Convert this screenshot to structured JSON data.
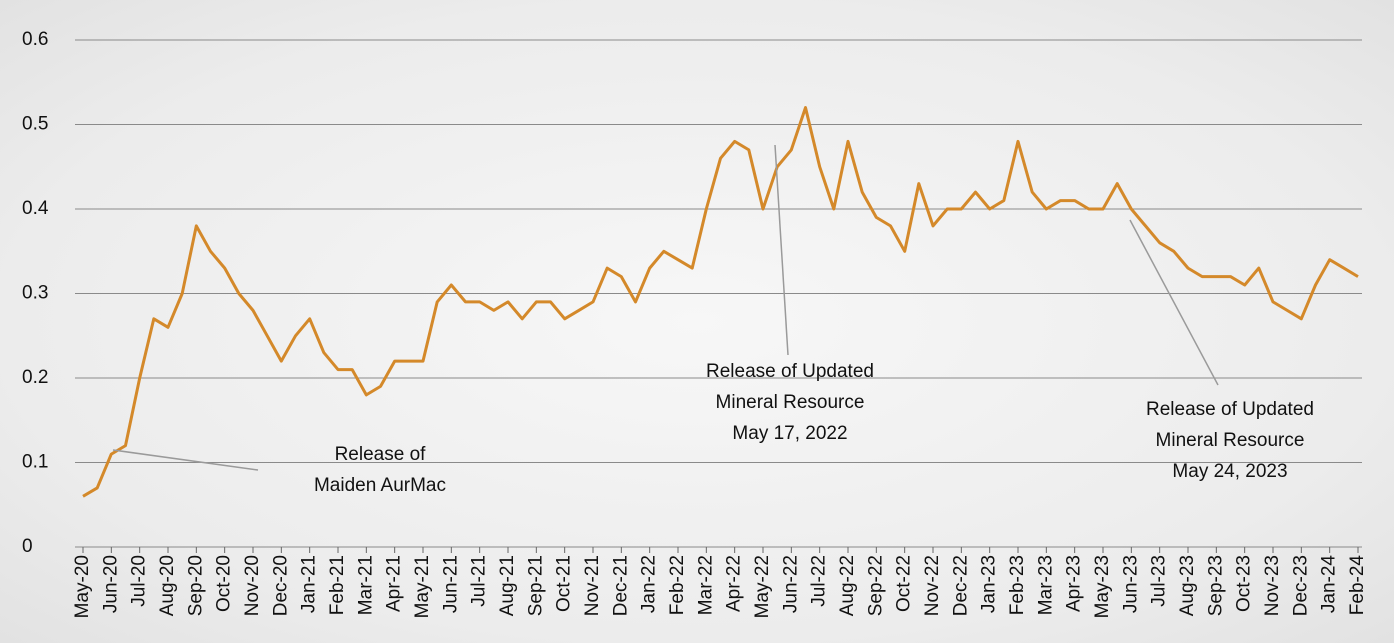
{
  "chart_data": {
    "type": "line",
    "categories": [
      "May-20",
      null,
      "Jun-20",
      null,
      "Jul-20",
      null,
      "Aug-20",
      null,
      "Sep-20",
      null,
      "Oct-20",
      null,
      "Nov-20",
      null,
      "Dec-20",
      null,
      "Jan-21",
      null,
      "Feb-21",
      null,
      "Mar-21",
      null,
      "Apr-21",
      null,
      "May-21",
      null,
      "Jun-21",
      null,
      "Jul-21",
      null,
      "Aug-21",
      null,
      "Sep-21",
      null,
      "Oct-21",
      null,
      "Nov-21",
      null,
      "Dec-21",
      null,
      "Jan-22",
      null,
      "Feb-22",
      null,
      "Mar-22",
      null,
      "Apr-22",
      null,
      "May-22",
      null,
      "Jun-22",
      null,
      "Jul-22",
      null,
      "Aug-22",
      null,
      "Sep-22",
      null,
      "Oct-22",
      null,
      "Nov-22",
      null,
      "Dec-22",
      null,
      "Jan-23",
      null,
      "Feb-23",
      null,
      "Mar-23",
      null,
      "Apr-23",
      null,
      "May-23",
      null,
      "Jun-23",
      null,
      "Jul-23",
      null,
      "Aug-23",
      null,
      "Sep-23",
      null,
      "Oct-23",
      null,
      "Nov-23",
      null,
      "Dec-23",
      null,
      "Jan-24",
      null,
      "Feb-24"
    ],
    "series": [
      {
        "color": "#d4892a",
        "values": [
          0.06,
          0.07,
          0.11,
          0.12,
          0.2,
          0.27,
          0.26,
          0.3,
          0.38,
          0.35,
          0.33,
          0.3,
          0.28,
          0.25,
          0.22,
          0.25,
          0.27,
          0.23,
          0.21,
          0.21,
          0.18,
          0.19,
          0.22,
          0.22,
          0.22,
          0.29,
          0.31,
          0.29,
          0.29,
          0.28,
          0.29,
          0.27,
          0.29,
          0.29,
          0.27,
          0.28,
          0.29,
          0.33,
          0.32,
          0.29,
          0.33,
          0.35,
          0.34,
          0.33,
          0.4,
          0.46,
          0.48,
          0.47,
          0.4,
          0.45,
          0.47,
          0.52,
          0.45,
          0.4,
          0.48,
          0.42,
          0.39,
          0.38,
          0.35,
          0.43,
          0.38,
          0.4,
          0.4,
          0.42,
          0.4,
          0.41,
          0.48,
          0.42,
          0.4,
          0.41,
          0.41,
          0.4,
          0.4,
          0.43,
          0.4,
          0.38,
          0.36,
          0.35,
          0.33,
          0.32,
          0.32,
          0.32,
          0.31,
          0.33,
          0.29,
          0.28,
          0.27,
          0.31,
          0.34,
          0.33,
          0.32
        ]
      }
    ],
    "ylim": [
      0,
      0.6
    ],
    "yticks": [
      0,
      0.1,
      0.2,
      0.3,
      0.4,
      0.5,
      0.6
    ],
    "grid": true,
    "annotations": [
      {
        "lines": [
          "Release of",
          "Maiden AurMac"
        ]
      },
      {
        "lines": [
          "Release of Updated",
          "Mineral Resource",
          "May 17, 2022"
        ]
      },
      {
        "lines": [
          "Release of Updated",
          "Mineral Resource",
          "May 24, 2023"
        ]
      }
    ]
  }
}
